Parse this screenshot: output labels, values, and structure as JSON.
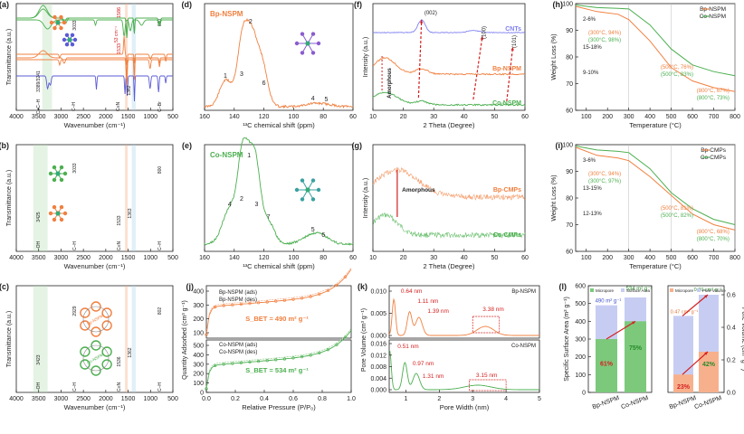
{
  "colors": {
    "green": "#4caf50",
    "orange": "#f08040",
    "purple": "#5a5ad6",
    "blue": "#8080f0",
    "red": "#d42020",
    "grid": "#999999",
    "dark": "#222222"
  },
  "chart_data": [
    {
      "id": "a",
      "type": "line",
      "panel_label": "(a)",
      "xlabel": "Wavenumber (cm⁻¹)",
      "ylabel": "Transmittance (a.u.)",
      "xlim": [
        4000,
        500
      ],
      "x_ticks": [
        "4000",
        "3500",
        "3000",
        "2500",
        "2000",
        "1500",
        "1000",
        "500"
      ],
      "series": [
        {
          "name": "product (green)"
        },
        {
          "name": "precursor (orange)"
        },
        {
          "name": "precursor (purple)"
        }
      ],
      "annotations": [
        "3389/3241",
        "3033",
        "660",
        "1586",
        "1533",
        "53 cm⁻¹",
        "1362",
        "C≡C–H",
        "C–H",
        "C≡N",
        "C–N",
        "C–Br"
      ]
    },
    {
      "id": "b",
      "type": "line",
      "panel_label": "(b)",
      "xlabel": "Wavenumber (cm⁻¹)",
      "ylabel": "Transmittance (a.u.)",
      "xlim": [
        4000,
        500
      ],
      "x_ticks": [
        "4000",
        "3500",
        "3000",
        "2500",
        "2000",
        "1500",
        "1000",
        "500"
      ],
      "annotations": [
        "3033",
        "800",
        "3425",
        "1533",
        "1363",
        "–OH",
        "C–H",
        "C≡N",
        "C–N",
        "C–H"
      ]
    },
    {
      "id": "c",
      "type": "line",
      "panel_label": "(c)",
      "xlabel": "Wavenumber (cm⁻¹)",
      "ylabel": "Transmittance (a.u.)",
      "xlim": [
        4000,
        500
      ],
      "x_ticks": [
        "4000",
        "3500",
        "3000",
        "2500",
        "2000",
        "1500",
        "1000",
        "500"
      ],
      "annotations": [
        "2929",
        "802",
        "3423",
        "1536",
        "1362",
        "–OH",
        "C–H",
        "C≡N",
        "C–N",
        "C–H",
        "Bp-NSPM",
        "Co-NSPM"
      ]
    },
    {
      "id": "d",
      "type": "line",
      "panel_label": "(d)",
      "title": "Bp-NSPM",
      "xlabel": "¹³C chemical shift (ppm)",
      "xlim": [
        160,
        60
      ],
      "x_ticks": [
        "160",
        "140",
        "120",
        "100",
        "80",
        "60"
      ],
      "peaks": [
        {
          "ppm": 146,
          "label": "1"
        },
        {
          "ppm": 129,
          "label": "2"
        },
        {
          "ppm": 135,
          "label": "3"
        },
        {
          "ppm": 87,
          "label": "4"
        },
        {
          "ppm": 78,
          "label": "5"
        },
        {
          "ppm": 120,
          "label": "6"
        }
      ]
    },
    {
      "id": "e",
      "type": "line",
      "panel_label": "(e)",
      "title": "Co-NSPM",
      "xlabel": "¹³C chemical shift (ppm)",
      "xlim": [
        160,
        60
      ],
      "x_ticks": [
        "160",
        "140",
        "120",
        "100",
        "80",
        "60"
      ],
      "peaks": [
        {
          "ppm": 130,
          "label": "1"
        },
        {
          "ppm": 135,
          "label": "2"
        },
        {
          "ppm": 125,
          "label": "3"
        },
        {
          "ppm": 143,
          "label": "4"
        },
        {
          "ppm": 87,
          "label": "5"
        },
        {
          "ppm": 80,
          "label": "6"
        },
        {
          "ppm": 117,
          "label": "7"
        }
      ]
    },
    {
      "id": "f",
      "type": "line",
      "panel_label": "(f)",
      "xlabel": "2 Theta (Degree)",
      "ylabel": "Intensity (a.u.)",
      "xlim": [
        10,
        60
      ],
      "x_ticks": [
        "10",
        "20",
        "30",
        "40",
        "50",
        "60"
      ],
      "series": [
        {
          "name": "CNTs"
        },
        {
          "name": "Bp-NSPM"
        },
        {
          "name": "Co-NSPM"
        }
      ],
      "annotations": [
        "(002)",
        "(100)",
        "(101)",
        "Amorphous"
      ]
    },
    {
      "id": "g",
      "type": "line",
      "panel_label": "(g)",
      "xlabel": "2 Theta (Degree)",
      "ylabel": "Intensity (a.u.)",
      "xlim": [
        10,
        60
      ],
      "x_ticks": [
        "10",
        "20",
        "30",
        "40",
        "50",
        "60"
      ],
      "series": [
        {
          "name": "Bp-CMPs"
        },
        {
          "name": "Co-CMPs"
        }
      ],
      "annotations": [
        "Amorphous"
      ]
    },
    {
      "id": "h",
      "type": "line",
      "panel_label": "(h)",
      "xlabel": "Temperature (°C)",
      "ylabel": "Weight Loss (%)",
      "xlim": [
        50,
        800
      ],
      "ylim": [
        60,
        100
      ],
      "x_ticks": [
        "100",
        "200",
        "300",
        "400",
        "500",
        "600",
        "700",
        "800"
      ],
      "y_ticks": [
        "60",
        "70",
        "80",
        "90",
        "100"
      ],
      "series": [
        {
          "name": "Bp-NSPM",
          "x": [
            50,
            150,
            250,
            300,
            400,
            500,
            600,
            700,
            800
          ],
          "y": [
            99,
            97,
            96,
            94,
            86,
            76,
            71,
            68.5,
            67
          ]
        },
        {
          "name": "Co-NSPM",
          "x": [
            50,
            150,
            250,
            300,
            400,
            500,
            600,
            700,
            800
          ],
          "y": [
            99.5,
            98.5,
            98.2,
            98,
            92,
            83,
            77,
            74.5,
            73
          ]
        }
      ],
      "annotations": [
        "2-6%",
        "15-18%",
        "9-10%",
        "(300°C, 94%)",
        "(300°C, 98%)",
        "(500°C, 76%)",
        "(500°C, 83%)",
        "(800°C, 67%)",
        "(800°C, 73%)"
      ]
    },
    {
      "id": "i",
      "type": "line",
      "panel_label": "(i)",
      "xlabel": "Temperature (°C)",
      "ylabel": "Weight Loss (%)",
      "xlim": [
        50,
        800
      ],
      "ylim": [
        60,
        100
      ],
      "x_ticks": [
        "100",
        "200",
        "300",
        "400",
        "500",
        "600",
        "700",
        "800"
      ],
      "y_ticks": [
        "60",
        "70",
        "80",
        "90",
        "100"
      ],
      "series": [
        {
          "name": "Bp-CMPs",
          "x": [
            50,
            150,
            250,
            300,
            400,
            500,
            600,
            700,
            800
          ],
          "y": [
            99,
            96,
            95,
            94,
            88,
            81,
            74,
            70,
            68
          ]
        },
        {
          "name": "Co-CMPs",
          "x": [
            50,
            150,
            250,
            300,
            400,
            500,
            600,
            700,
            800
          ],
          "y": [
            99.5,
            98,
            97.5,
            97,
            91,
            82,
            76,
            72,
            70
          ]
        }
      ],
      "annotations": [
        "3-6%",
        "13-15%",
        "12-13%",
        "(300°C, 94%)",
        "(300°C, 97%)",
        "(500°C, 81%)",
        "(500°C, 82%)",
        "(800°C, 68%)",
        "(800°C, 70%)"
      ]
    },
    {
      "id": "j",
      "type": "line",
      "panel_label": "(j)",
      "xlabel": "Relative Pressure (P/P₀)",
      "ylabel": "Quantity Adsorbed (cm³ g⁻¹)",
      "xlim": [
        0,
        1
      ],
      "x_ticks": [
        "0.0",
        "0.2",
        "0.4",
        "0.6",
        "0.8",
        "1.0"
      ],
      "y_ticks_top": [
        "100",
        "200",
        "300",
        "400"
      ],
      "y_ticks_bottom": [
        "0",
        "100",
        "200",
        "300",
        "400",
        "500"
      ],
      "series": [
        {
          "name": "Bp-NSPM (ads)"
        },
        {
          "name": "Bp-NSPM (des)"
        },
        {
          "name": "Co-NSPM (ads)"
        },
        {
          "name": "Co-NSPM (des)"
        }
      ],
      "annotations": [
        "S_BET = 490 m² g⁻¹",
        "S_BET = 534 m² g⁻¹"
      ]
    },
    {
      "id": "k",
      "type": "line",
      "panel_label": "(k)",
      "xlabel": "Pore Width (nm)",
      "ylabel": "Pore Volume (cm³ g⁻¹)",
      "xlim": [
        0.5,
        5
      ],
      "x_ticks": [
        "1",
        "2",
        "3",
        "4",
        "5"
      ],
      "y_ticks_top": [
        "0.000",
        "0.005",
        "0.010"
      ],
      "y_ticks_bottom": [
        "0.000",
        "0.004",
        "0.008",
        "0.012",
        "0.016"
      ],
      "series": [
        {
          "name": "Bp-NSPM"
        },
        {
          "name": "Co-NSPM"
        }
      ],
      "annotations": [
        "0.64 nm",
        "1.11 nm",
        "1.39 nm",
        "3.38 nm",
        "0.51 nm",
        "0.97 nm",
        "1.31 nm",
        "3.15 nm"
      ]
    },
    {
      "id": "l",
      "type": "bar",
      "panel_label": "(l)",
      "categories": [
        "Bp-NSPM",
        "Co-NSPM"
      ],
      "series": [
        {
          "name": "Micropore (surface)",
          "values": [
            300,
            400
          ]
        },
        {
          "name": "Surface Area",
          "values": [
            490,
            534
          ]
        },
        {
          "name": "Micropore (volume)",
          "values": [
            0.11,
            0.25
          ]
        },
        {
          "name": "Pore Volume",
          "values": [
            0.47,
            0.6
          ]
        }
      ],
      "ylabel_left": "Specific Surface Area (m² g⁻¹)",
      "ylabel_right": "Pore Volume (cm³ g⁻¹)",
      "y_ticks_left": [
        "0",
        "100",
        "200",
        "300",
        "400",
        "500",
        "600"
      ],
      "y_ticks_right": [
        "0.0",
        "0.2",
        "0.4",
        "0.6"
      ],
      "annotations": [
        "490 m² g⁻¹",
        "534 m² g⁻¹",
        "61%",
        "75%",
        "0.47 cm³ g⁻¹",
        "0.60 cm³ g⁻¹",
        "23%",
        "42%"
      ],
      "legend_left": [
        "Micropore",
        "Surface Area"
      ],
      "legend_right": [
        "Micropore",
        "Pore Volume"
      ]
    }
  ]
}
